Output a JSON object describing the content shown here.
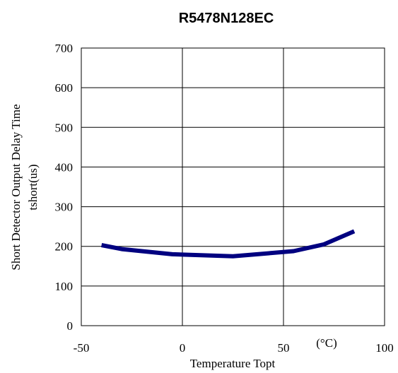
{
  "chart_data": {
    "type": "line",
    "title": "R5478N128EC",
    "xlabel": "Temperature Topt",
    "xunit": "(°C)",
    "ylabel": [
      "Short Detector Output Delay Time",
      "tshort(us)"
    ],
    "xlim": [
      -50,
      100
    ],
    "ylim": [
      0,
      700
    ],
    "x_ticks": [
      -50,
      0,
      50,
      100
    ],
    "y_ticks": [
      0,
      100,
      200,
      300,
      400,
      500,
      600,
      700
    ],
    "grid": true,
    "series": [
      {
        "color": "#000080",
        "x": [
          -40,
          -30,
          -5,
          25,
          55,
          70,
          85
        ],
        "y": [
          203,
          193,
          180,
          175,
          188,
          205,
          238
        ]
      }
    ]
  }
}
